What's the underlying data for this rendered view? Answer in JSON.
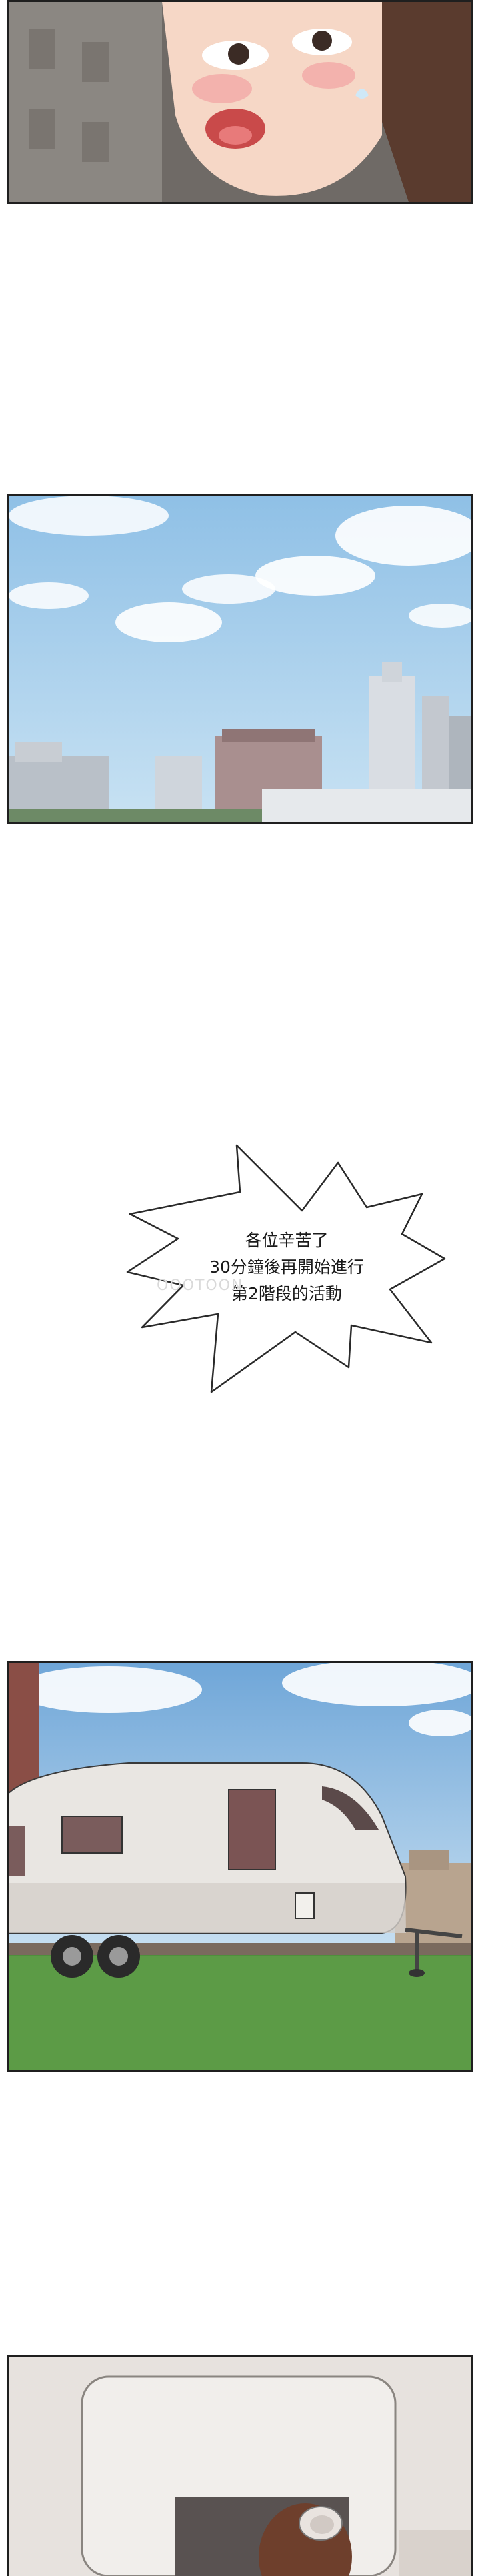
{
  "speech_bubble": {
    "line1": "各位辛苦了",
    "line2": "30分鐘後再開始進行",
    "line3": "第2階段的活動"
  },
  "watermark": "OOOTOON",
  "colors": {
    "sky": "#a9cdea",
    "grass": "#4f8f3d",
    "border": "#1f1f1f",
    "hair": "#5a3b2e",
    "skin": "#f6d7c6"
  }
}
